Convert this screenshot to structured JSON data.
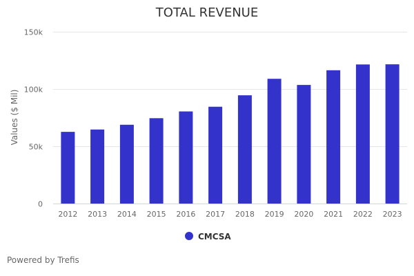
{
  "chart_data": {
    "type": "bar",
    "title": "TOTAL REVENUE",
    "xlabel": "",
    "ylabel": "Values ($ Mil)",
    "ylim": [
      0,
      150000
    ],
    "yticks": [
      0,
      50000,
      100000,
      150000
    ],
    "ytick_labels": [
      "0",
      "50k",
      "100k",
      "150k"
    ],
    "grid": true,
    "legend_position": "bottom-center",
    "categories": [
      "2012",
      "2013",
      "2014",
      "2015",
      "2016",
      "2017",
      "2018",
      "2019",
      "2020",
      "2021",
      "2022",
      "2023"
    ],
    "series": [
      {
        "name": "CMCSA",
        "color": "#3333cc",
        "values": [
          62570,
          64657,
          68775,
          74510,
          80403,
          84526,
          94507,
          108942,
          103564,
          116385,
          121427,
          121572
        ]
      }
    ]
  },
  "credit": "Powered by Trefis"
}
